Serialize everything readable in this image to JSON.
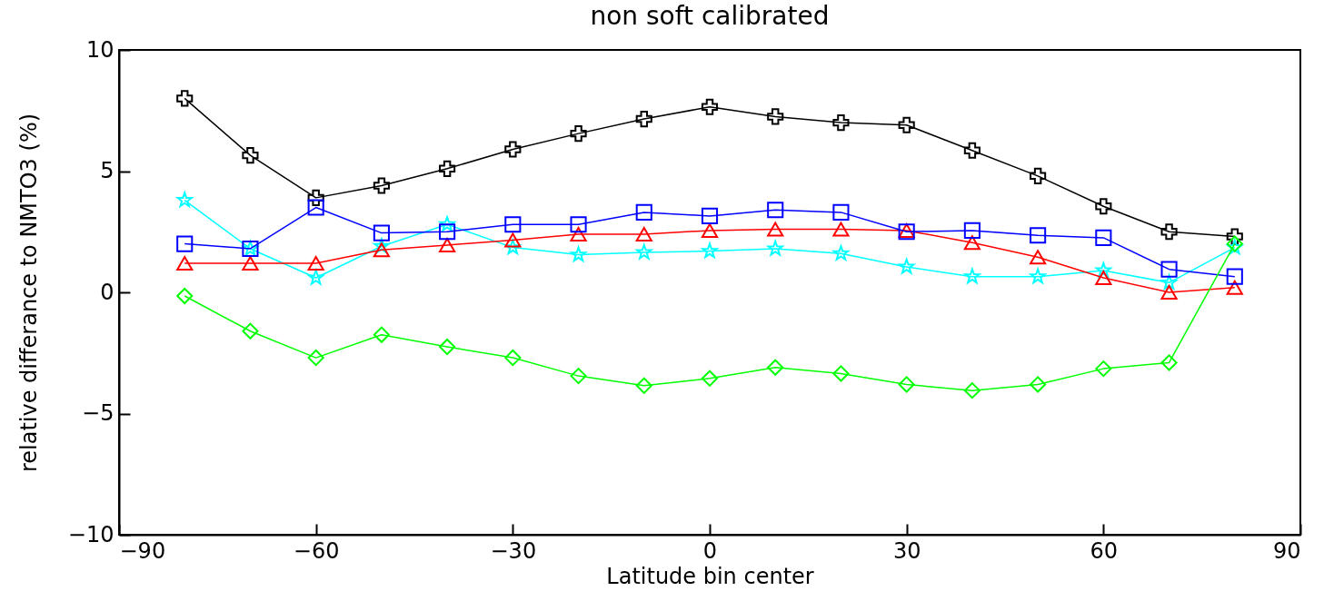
{
  "chart_data": {
    "type": "line",
    "title": "non soft calibrated",
    "xlabel": "Latitude bin center",
    "ylabel": "relative differance to NMTO3 (%)",
    "x": [
      -80,
      -70,
      -60,
      -50,
      -40,
      -30,
      -20,
      -10,
      0,
      10,
      20,
      30,
      40,
      50,
      60,
      70,
      80
    ],
    "xlim": [
      -90,
      90
    ],
    "xticks": [
      -90,
      -60,
      -30,
      0,
      30,
      60,
      90
    ],
    "ylim": [
      -10,
      10
    ],
    "yticks": [
      -10,
      -5,
      0,
      5,
      10
    ],
    "grid": false,
    "series": [
      {
        "color": "#000000",
        "marker": "cross",
        "values": [
          8.0,
          5.65,
          3.9,
          4.4,
          5.1,
          5.9,
          6.55,
          7.15,
          7.65,
          7.25,
          7.0,
          6.9,
          5.85,
          4.8,
          3.55,
          2.5,
          2.3
        ]
      },
      {
        "color": "#00ffff",
        "marker": "star",
        "values": [
          3.8,
          1.8,
          0.6,
          1.9,
          2.8,
          1.85,
          1.55,
          1.65,
          1.7,
          1.8,
          1.6,
          1.05,
          0.65,
          0.65,
          0.9,
          0.4,
          1.85
        ]
      },
      {
        "color": "#ff0000",
        "marker": "triangle",
        "values": [
          1.2,
          1.2,
          1.2,
          1.75,
          1.95,
          2.15,
          2.4,
          2.4,
          2.55,
          2.6,
          2.6,
          2.55,
          2.05,
          1.45,
          0.6,
          0.0,
          0.2
        ]
      },
      {
        "color": "#0000ff",
        "marker": "square",
        "values": [
          2.0,
          1.8,
          3.5,
          2.45,
          2.5,
          2.8,
          2.8,
          3.3,
          3.15,
          3.4,
          3.3,
          2.5,
          2.55,
          2.35,
          2.25,
          0.95,
          0.65
        ]
      },
      {
        "color": "#00ff00",
        "marker": "diamond",
        "values": [
          -0.15,
          -1.6,
          -2.7,
          -1.75,
          -2.25,
          -2.7,
          -3.45,
          -3.85,
          -3.55,
          -3.1,
          -3.35,
          -3.8,
          -4.05,
          -3.8,
          -3.15,
          -2.9,
          2.0
        ]
      }
    ]
  }
}
